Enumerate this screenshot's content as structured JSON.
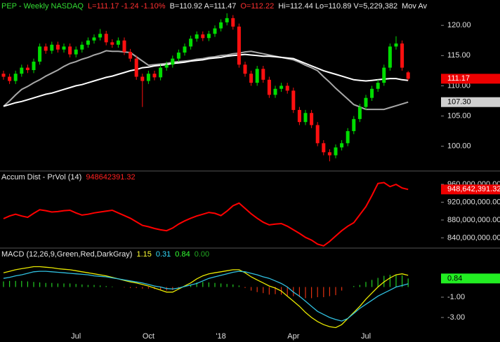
{
  "chart_data": [
    {
      "type": "candlestick",
      "header": [
        {
          "text": "PEP - Weekly NASDAQ",
          "color": "#33dd33"
        },
        {
          "text": "L=111.17 -1.24 -1.10%",
          "color": "#ff3030"
        },
        {
          "text": "B=110.92 A=111.47",
          "color": "#e8e8e8"
        },
        {
          "text": "O=112.22",
          "color": "#ff3030"
        },
        {
          "text": "Hi=112.44 Lo=110.89 V=5,229,382",
          "color": "#e8e8e8"
        },
        {
          "text": "Mov Av",
          "color": "#e8e8e8"
        }
      ],
      "categories": [
        null,
        null,
        null,
        null,
        null,
        null,
        null,
        null,
        null,
        null,
        null,
        null,
        "Jul",
        null,
        null,
        null,
        null,
        null,
        null,
        null,
        null,
        null,
        null,
        null,
        "Oct",
        null,
        null,
        null,
        null,
        null,
        null,
        null,
        null,
        null,
        null,
        null,
        "'18",
        null,
        null,
        null,
        null,
        null,
        null,
        null,
        null,
        null,
        null,
        null,
        "Apr",
        null,
        null,
        null,
        null,
        null,
        null,
        null,
        null,
        null,
        null,
        null,
        "Jul",
        null,
        null,
        null,
        null,
        null,
        null,
        null
      ],
      "open": [
        112.0,
        111.5,
        110.8,
        112.0,
        113.0,
        112.6,
        114.0,
        116.5,
        115.8,
        116.8,
        116.0,
        116.5,
        115.2,
        116.0,
        116.8,
        117.5,
        118.0,
        118.6,
        117.2,
        116.8,
        117.5,
        115.6,
        114.5,
        111.5,
        110.8,
        112.0,
        111.4,
        113.0,
        113.5,
        114.5,
        115.5,
        116.5,
        117.8,
        118.5,
        117.9,
        118.6,
        119.5,
        120.5,
        121.2,
        119.8,
        113.5,
        112.0,
        110.5,
        112.8,
        111.0,
        108.5,
        109.5,
        110.0,
        109.2,
        106.0,
        104.0,
        105.5,
        103.5,
        100.5,
        99.0,
        98.5,
        99.8,
        100.5,
        102.5,
        104.5,
        106.5,
        108.0,
        109.5,
        110.5,
        113.0,
        116.5,
        117.0,
        112.22
      ],
      "high": [
        112.5,
        112.0,
        112.5,
        113.5,
        113.5,
        114.5,
        117.0,
        117.0,
        117.3,
        117.3,
        117.0,
        117.0,
        116.5,
        117.3,
        118.0,
        118.5,
        119.4,
        119.1,
        117.7,
        118.0,
        118.0,
        116.1,
        115.0,
        112.0,
        112.5,
        112.5,
        113.5,
        114.0,
        115.0,
        116.0,
        117.0,
        118.3,
        119.0,
        119.0,
        119.1,
        120.0,
        121.0,
        122.0,
        121.7,
        120.3,
        114.0,
        112.5,
        113.3,
        113.3,
        111.5,
        110.0,
        110.5,
        110.5,
        109.7,
        106.5,
        106.0,
        106.0,
        104.0,
        101.0,
        99.5,
        100.3,
        101.0,
        103.0,
        105.0,
        107.0,
        108.5,
        110.0,
        111.0,
        113.5,
        117.0,
        118.2,
        117.5,
        112.44
      ],
      "low": [
        111.0,
        110.3,
        110.3,
        111.5,
        112.1,
        112.1,
        113.5,
        115.3,
        115.3,
        115.5,
        115.5,
        114.7,
        114.7,
        115.5,
        116.3,
        117.0,
        117.5,
        116.7,
        116.3,
        116.3,
        115.1,
        114.0,
        111.0,
        106.5,
        110.3,
        110.9,
        110.9,
        112.5,
        113.0,
        114.0,
        115.0,
        116.0,
        117.3,
        117.4,
        117.4,
        118.1,
        119.0,
        120.0,
        119.3,
        113.0,
        111.5,
        110.0,
        110.0,
        110.5,
        108.0,
        108.0,
        109.0,
        108.7,
        105.5,
        103.5,
        103.5,
        103.0,
        100.0,
        98.5,
        97.5,
        98.0,
        99.3,
        100.0,
        102.0,
        104.0,
        106.0,
        107.5,
        109.0,
        110.0,
        112.5,
        116.0,
        112.5,
        110.89
      ],
      "close": [
        111.5,
        110.8,
        112.0,
        113.0,
        112.6,
        114.0,
        116.5,
        115.8,
        116.8,
        116.0,
        116.5,
        115.2,
        116.0,
        116.8,
        117.5,
        118.0,
        118.6,
        117.2,
        116.8,
        117.5,
        115.6,
        114.5,
        111.5,
        110.8,
        112.0,
        111.4,
        113.0,
        113.5,
        114.5,
        115.5,
        116.5,
        117.8,
        118.5,
        117.9,
        118.6,
        119.5,
        120.5,
        121.2,
        119.8,
        113.5,
        112.0,
        110.5,
        112.8,
        111.0,
        108.5,
        109.5,
        110.0,
        109.2,
        106.0,
        104.0,
        105.5,
        103.5,
        100.5,
        99.0,
        98.5,
        99.8,
        100.5,
        102.5,
        104.5,
        106.5,
        108.0,
        109.5,
        110.5,
        113.0,
        116.5,
        117.0,
        113.0,
        111.17
      ],
      "up_color": "#00dd00",
      "down_color": "#ff1010",
      "series": [
        {
          "color": "#a8a8a8",
          "values": [
            106.6,
            107.5,
            108.5,
            109.4,
            109.9,
            110.5,
            111.0,
            111.6,
            112.1,
            112.6,
            113.2,
            113.7,
            114.0,
            114.4,
            114.7,
            115.1,
            115.4,
            115.8,
            115.7,
            115.7,
            115.6,
            115.5,
            114.8,
            114.1,
            113.4,
            113.5,
            113.6,
            113.7,
            113.9,
            114.0,
            114.1,
            114.2,
            114.4,
            114.5,
            114.7,
            114.8,
            115.0,
            115.1,
            115.3,
            115.4,
            115.6,
            115.7,
            115.5,
            115.3,
            115.1,
            114.9,
            114.7,
            114.5,
            114.3,
            113.9,
            113.4,
            113.0,
            112.5,
            111.5,
            110.6,
            109.6,
            108.7,
            107.8,
            106.9,
            106.5,
            106.1,
            106.1,
            106.1,
            106.1,
            106.4,
            106.7,
            107.0,
            107.3
          ]
        },
        {
          "color": "#ffffff",
          "values": [
            106.6,
            106.9,
            107.2,
            107.4,
            107.7,
            108.0,
            108.3,
            108.6,
            108.8,
            109.1,
            109.4,
            109.7,
            110.0,
            110.2,
            110.5,
            110.8,
            111.1,
            111.4,
            111.6,
            111.9,
            112.2,
            112.5,
            112.7,
            113.0,
            113.1,
            113.3,
            113.4,
            113.5,
            113.7,
            113.8,
            113.9,
            114.1,
            114.2,
            114.3,
            114.5,
            114.6,
            114.7,
            114.9,
            115.0,
            115.1,
            115.2,
            115.1,
            115.0,
            114.9,
            114.9,
            114.8,
            114.7,
            114.6,
            114.5,
            114.1,
            113.7,
            113.3,
            112.9,
            112.5,
            112.2,
            111.9,
            111.6,
            111.3,
            111.0,
            110.9,
            110.8,
            110.9,
            111.0,
            111.1,
            111.2,
            111.2,
            111.0,
            110.9
          ]
        }
      ],
      "ylim": [
        95.9,
        124.2
      ],
      "yticks": [
        {
          "value": 100,
          "label": "100.00"
        },
        {
          "value": 105,
          "label": "105.00"
        },
        {
          "value": 110,
          "label": "110.00"
        },
        {
          "value": 115,
          "label": "115.00"
        },
        {
          "value": 120,
          "label": "120.00"
        }
      ],
      "markers": [
        {
          "value": 111.17,
          "label": "111.17",
          "background": "#ee0000",
          "color": "#ffffff"
        },
        {
          "value": 107.3,
          "label": "107.30",
          "background": "#d0d0d0",
          "color": "#000000"
        }
      ]
    },
    {
      "type": "line",
      "header": [
        {
          "text": "Accum Dist - PrVol (14)",
          "color": "#e8e8e8"
        },
        {
          "text": "948642391.32",
          "color": "#ff2020"
        }
      ],
      "series": [
        {
          "color": "#ff0000",
          "values": [
            883000000,
            889000000,
            893000000,
            889000000,
            886000000,
            895000000,
            903000000,
            901000000,
            898000000,
            899000000,
            901000000,
            902000000,
            896000000,
            891000000,
            893000000,
            896000000,
            898000000,
            900000000,
            902000000,
            896000000,
            890000000,
            884000000,
            876000000,
            868000000,
            865000000,
            861000000,
            858000000,
            856000000,
            862000000,
            871000000,
            878000000,
            884000000,
            889000000,
            893000000,
            897000000,
            895000000,
            890000000,
            900000000,
            912000000,
            918000000,
            906000000,
            894000000,
            884000000,
            875000000,
            869000000,
            871000000,
            872000000,
            866000000,
            858000000,
            850000000,
            841000000,
            835000000,
            826000000,
            822000000,
            832000000,
            844000000,
            856000000,
            866000000,
            874000000,
            892000000,
            910000000,
            935000000,
            962000000,
            964000000,
            955000000,
            960000000,
            952000000,
            948642391.32
          ]
        }
      ],
      "ylim": [
        817000000,
        990000000
      ],
      "yticks": [
        {
          "value": 840000000,
          "label": "840,000,000.00"
        },
        {
          "value": 880000000,
          "label": "880,000,000.00"
        },
        {
          "value": 920000000,
          "label": "920,000,000.00"
        },
        {
          "value": 960000000,
          "label": "960,000,000.00"
        }
      ],
      "markers": [
        {
          "value": 948642391.32,
          "label": "948,642,391.32",
          "background": "#ee0000",
          "color": "#ffffff"
        }
      ]
    },
    {
      "type": "macd",
      "header": [
        {
          "text": "MACD (12,26,9,Green,Red,DarkGray)",
          "color": "#e8e8e8"
        },
        {
          "text": "1.15",
          "color": "#ffff33"
        },
        {
          "text": "0.31",
          "color": "#33ddff"
        },
        {
          "text": "0.84",
          "color": "#33ff33"
        },
        {
          "text": "0.00",
          "color": "#22aa22"
        }
      ],
      "series": [
        {
          "color": "#e8e800",
          "values": [
            1.4,
            1.55,
            1.7,
            1.8,
            1.9,
            2.0,
            2.0,
            1.95,
            1.9,
            1.8,
            1.75,
            1.7,
            1.6,
            1.5,
            1.4,
            1.3,
            1.2,
            1.1,
            0.95,
            0.8,
            0.65,
            0.5,
            0.4,
            0.25,
            0.1,
            -0.1,
            -0.3,
            -0.5,
            -0.5,
            -0.2,
            0.1,
            0.4,
            0.8,
            1.1,
            1.3,
            1.4,
            1.5,
            1.6,
            1.7,
            1.7,
            1.4,
            1.0,
            0.7,
            0.4,
            0.1,
            -0.1,
            -0.4,
            -0.9,
            -1.4,
            -1.9,
            -2.5,
            -3.0,
            -3.4,
            -3.7,
            -3.9,
            -4.0,
            -3.7,
            -3.1,
            -2.5,
            -1.9,
            -1.2,
            -0.6,
            0.0,
            0.5,
            0.9,
            1.2,
            1.3,
            1.15
          ]
        },
        {
          "color": "#30c0e0",
          "values": [
            0.85,
            0.95,
            1.1,
            1.2,
            1.35,
            1.5,
            1.55,
            1.55,
            1.5,
            1.45,
            1.4,
            1.35,
            1.3,
            1.25,
            1.2,
            1.1,
            1.05,
            1.0,
            0.9,
            0.8,
            0.7,
            0.6,
            0.5,
            0.4,
            0.25,
            0.1,
            0.0,
            -0.15,
            -0.2,
            -0.1,
            0.05,
            0.2,
            0.35,
            0.6,
            0.85,
            1.0,
            1.15,
            1.3,
            1.45,
            1.55,
            1.5,
            1.35,
            1.2,
            1.0,
            0.85,
            0.6,
            0.35,
            0.0,
            -0.5,
            -0.9,
            -1.4,
            -1.9,
            -2.4,
            -2.7,
            -3.0,
            -3.2,
            -3.35,
            -3.1,
            -2.6,
            -2.1,
            -1.7,
            -1.3,
            -0.9,
            -0.6,
            -0.3,
            0.0,
            0.15,
            0.31
          ]
        }
      ],
      "histogram": {
        "up_color": "#22cc22",
        "down_color": "#e03010",
        "values": [
          0.55,
          0.6,
          0.6,
          0.6,
          0.55,
          0.5,
          0.45,
          0.4,
          0.4,
          0.35,
          0.35,
          0.35,
          0.3,
          0.25,
          0.2,
          0.2,
          0.15,
          0.1,
          0.05,
          0,
          -0.05,
          -0.1,
          -0.1,
          -0.15,
          -0.15,
          -0.2,
          -0.3,
          -0.35,
          -0.3,
          -0.1,
          0.05,
          0.2,
          0.45,
          0.5,
          0.45,
          0.4,
          0.35,
          0.3,
          0.25,
          0.15,
          -0.1,
          -0.35,
          -0.5,
          -0.6,
          -0.75,
          -0.7,
          -0.75,
          -0.9,
          -0.9,
          -1.0,
          -1.1,
          -1.1,
          -1.0,
          -1.0,
          -0.9,
          -0.8,
          -0.35,
          0.0,
          0.1,
          0.2,
          0.5,
          0.7,
          0.9,
          1.1,
          1.2,
          1.2,
          1.15,
          0.84
        ]
      },
      "ylim": [
        -4.17,
        3.83
      ],
      "yticks": [
        {
          "value": -3,
          "label": "-3.00"
        },
        {
          "value": -1,
          "label": "-1.00"
        }
      ],
      "markers": [
        {
          "value": 0.84,
          "label": "0.84",
          "background": "#22ee22",
          "color": "#000000"
        }
      ]
    }
  ]
}
